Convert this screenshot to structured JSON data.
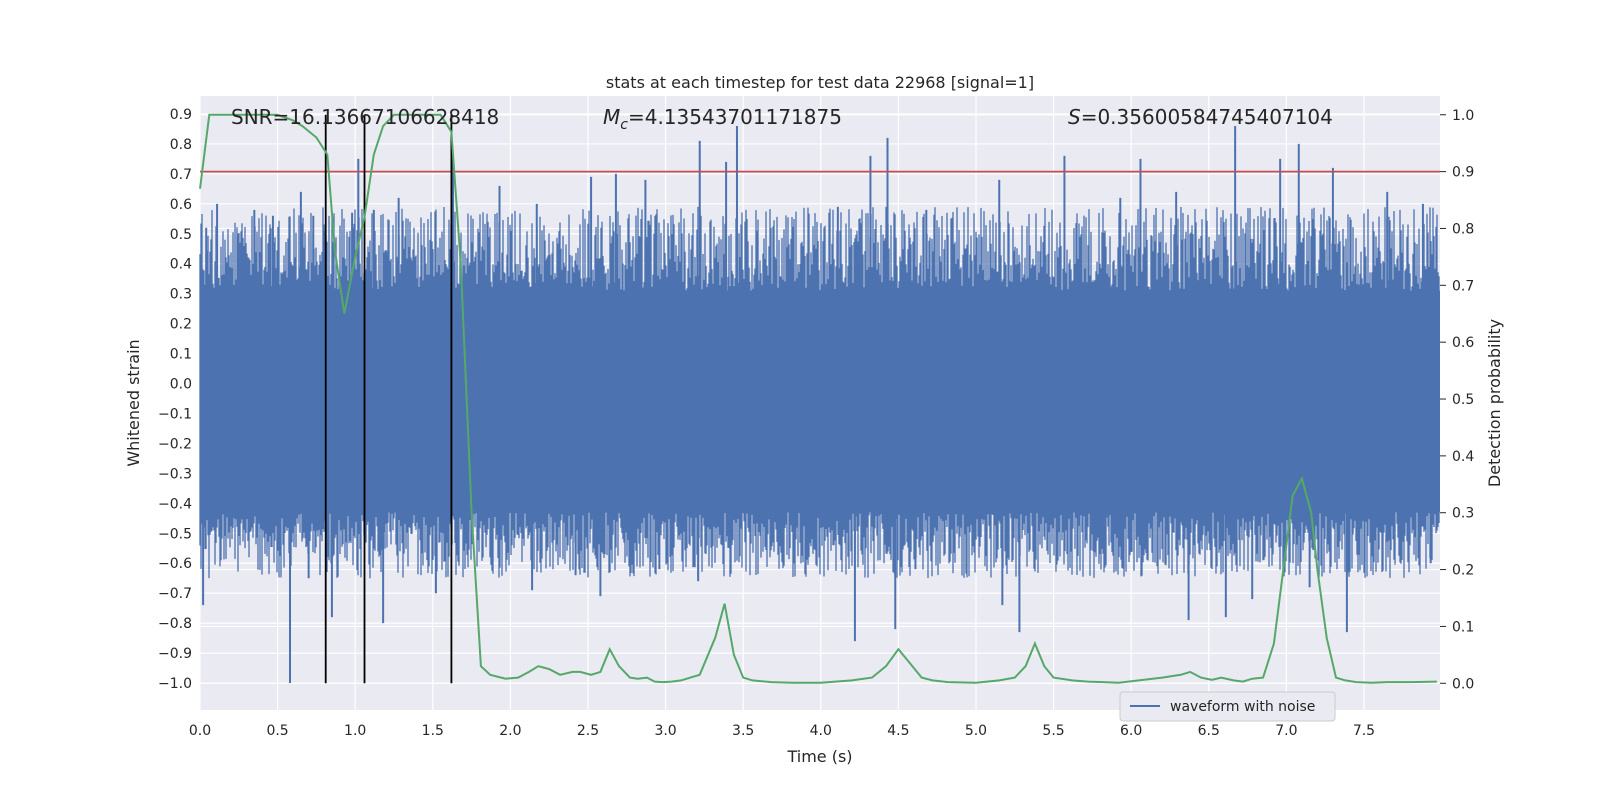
{
  "chart_data": {
    "type": "line",
    "title": "stats at each timestep for test data 22968 [signal=1]",
    "xlabel": "Time (s)",
    "ylabel_left": "Whitened strain",
    "ylabel_right": "Detection probability",
    "xlim": [
      0.0,
      7.99
    ],
    "ylim_left": [
      -1.09,
      0.96
    ],
    "ylim_right": [
      -0.047,
      1.033
    ],
    "x_ticks": [
      0.0,
      0.5,
      1.0,
      1.5,
      2.0,
      2.5,
      3.0,
      3.5,
      4.0,
      4.5,
      5.0,
      5.5,
      6.0,
      6.5,
      7.0,
      7.5
    ],
    "x_tick_labels": [
      "0.0",
      "0.5",
      "1.0",
      "1.5",
      "2.0",
      "2.5",
      "3.0",
      "3.5",
      "4.0",
      "4.5",
      "5.0",
      "5.5",
      "6.0",
      "6.5",
      "7.0",
      "7.5"
    ],
    "y_left_ticks": [
      0.9,
      0.8,
      0.7,
      0.6,
      0.5,
      0.4,
      0.3,
      0.2,
      0.1,
      0.0,
      -0.1,
      -0.2,
      -0.3,
      -0.4,
      -0.5,
      -0.6,
      -0.7,
      -0.8,
      -0.9,
      -1.0
    ],
    "y_left_tick_labels": [
      "0.9",
      "0.8",
      "0.7",
      "0.6",
      "0.5",
      "0.4",
      "0.3",
      "0.2",
      "0.1",
      "0.0",
      "−0.1",
      "−0.2",
      "−0.3",
      "−0.4",
      "−0.5",
      "−0.6",
      "−0.7",
      "−0.8",
      "−0.9",
      "−1.0"
    ],
    "y_right_ticks": [
      1.0,
      0.9,
      0.8,
      0.7,
      0.6,
      0.5,
      0.4,
      0.3,
      0.2,
      0.1,
      0.0
    ],
    "y_right_tick_labels": [
      "1.0",
      "0.9",
      "0.8",
      "0.7",
      "0.6",
      "0.5",
      "0.4",
      "0.3",
      "0.2",
      "0.1",
      "0.0"
    ],
    "annotations": {
      "snr": "SNR=16.13667106628418",
      "mc_symbol": "M",
      "mc_sub": "c",
      "mc_value": "=4.13543701171875",
      "s_symbol": "S",
      "s_value": "=0.35600584745407104"
    },
    "threshold": {
      "value": 0.9,
      "axis": "right",
      "color": "#c44e52"
    },
    "vertical_lines": [
      0.81,
      1.06,
      1.62
    ],
    "waveform": {
      "name": "waveform with noise",
      "color": "#4c72b0",
      "core_upper": 0.31,
      "core_lower": -0.43,
      "noise_seed": 22968,
      "spikes_high": [
        [
          0.04,
          0.52
        ],
        [
          0.11,
          0.6
        ],
        [
          0.35,
          0.58
        ],
        [
          0.47,
          0.56
        ],
        [
          0.65,
          0.64
        ],
        [
          0.73,
          0.56
        ],
        [
          0.98,
          0.57
        ],
        [
          1.02,
          0.75
        ],
        [
          1.12,
          0.58
        ],
        [
          1.28,
          0.62
        ],
        [
          1.63,
          0.76
        ],
        [
          1.93,
          0.66
        ],
        [
          2.17,
          0.6
        ],
        [
          2.52,
          0.69
        ],
        [
          2.68,
          0.7
        ],
        [
          2.87,
          0.68
        ],
        [
          3.22,
          0.81
        ],
        [
          3.39,
          0.74
        ],
        [
          3.46,
          0.86
        ],
        [
          4.11,
          0.59
        ],
        [
          4.32,
          0.76
        ],
        [
          4.43,
          0.82
        ],
        [
          4.68,
          0.58
        ],
        [
          5.15,
          0.68
        ],
        [
          5.57,
          0.76
        ],
        [
          5.93,
          0.62
        ],
        [
          6.06,
          0.75
        ],
        [
          6.29,
          0.64
        ],
        [
          6.67,
          0.86
        ],
        [
          6.96,
          0.75
        ],
        [
          7.08,
          0.8
        ],
        [
          7.3,
          0.72
        ],
        [
          7.65,
          0.64
        ],
        [
          7.88,
          0.6
        ]
      ],
      "spikes_low": [
        [
          0.02,
          -0.74
        ],
        [
          0.58,
          -1.0
        ],
        [
          0.7,
          -0.65
        ],
        [
          0.85,
          -0.78
        ],
        [
          1.18,
          -0.8
        ],
        [
          1.52,
          -0.7
        ],
        [
          2.14,
          -0.69
        ],
        [
          2.42,
          -0.64
        ],
        [
          2.58,
          -0.71
        ],
        [
          2.96,
          -0.62
        ],
        [
          3.21,
          -0.66
        ],
        [
          4.22,
          -0.86
        ],
        [
          4.48,
          -0.82
        ],
        [
          4.61,
          -0.62
        ],
        [
          5.17,
          -0.74
        ],
        [
          5.28,
          -0.83
        ],
        [
          6.37,
          -0.79
        ],
        [
          6.61,
          -0.78
        ],
        [
          6.78,
          -0.72
        ],
        [
          7.15,
          -0.68
        ],
        [
          7.39,
          -0.83
        ],
        [
          7.93,
          -0.6
        ]
      ]
    },
    "probability": {
      "name": "Detection probability",
      "color": "#55a868",
      "x": [
        0.0,
        0.06,
        0.12,
        0.2,
        0.3,
        0.4,
        0.5,
        0.6,
        0.66,
        0.75,
        0.82,
        0.87,
        0.93,
        1.0,
        1.06,
        1.12,
        1.18,
        1.25,
        1.35,
        1.45,
        1.55,
        1.62,
        1.68,
        1.75,
        1.81,
        1.87,
        1.97,
        2.05,
        2.12,
        2.18,
        2.25,
        2.32,
        2.4,
        2.45,
        2.52,
        2.58,
        2.64,
        2.7,
        2.77,
        2.82,
        2.88,
        2.93,
        2.98,
        3.04,
        3.1,
        3.16,
        3.22,
        3.32,
        3.38,
        3.44,
        3.5,
        3.56,
        3.68,
        3.82,
        4.0,
        4.2,
        4.33,
        4.42,
        4.5,
        4.56,
        4.65,
        4.72,
        4.82,
        5.0,
        5.15,
        5.25,
        5.32,
        5.38,
        5.44,
        5.5,
        5.62,
        5.72,
        5.82,
        5.92,
        6.05,
        6.2,
        6.32,
        6.38,
        6.45,
        6.52,
        6.58,
        6.66,
        6.72,
        6.78,
        6.85,
        6.92,
        6.98,
        7.04,
        7.1,
        7.16,
        7.2,
        7.26,
        7.32,
        7.38,
        7.45,
        7.55,
        7.65,
        7.8,
        7.97
      ],
      "y": [
        0.87,
        1.0,
        1.0,
        1.0,
        1.0,
        1.0,
        1.0,
        0.99,
        0.98,
        0.96,
        0.93,
        0.76,
        0.65,
        0.75,
        0.82,
        0.93,
        0.98,
        1.0,
        1.0,
        1.0,
        1.0,
        0.97,
        0.74,
        0.3,
        0.03,
        0.015,
        0.008,
        0.01,
        0.02,
        0.03,
        0.025,
        0.015,
        0.02,
        0.02,
        0.015,
        0.02,
        0.06,
        0.03,
        0.01,
        0.008,
        0.01,
        0.003,
        0.002,
        0.003,
        0.005,
        0.01,
        0.015,
        0.08,
        0.14,
        0.05,
        0.01,
        0.005,
        0.002,
        0.001,
        0.001,
        0.005,
        0.01,
        0.03,
        0.06,
        0.04,
        0.01,
        0.005,
        0.002,
        0.001,
        0.005,
        0.01,
        0.03,
        0.07,
        0.03,
        0.01,
        0.005,
        0.003,
        0.002,
        0.001,
        0.005,
        0.01,
        0.015,
        0.02,
        0.01,
        0.006,
        0.01,
        0.005,
        0.003,
        0.008,
        0.01,
        0.07,
        0.2,
        0.33,
        0.36,
        0.3,
        0.2,
        0.08,
        0.01,
        0.005,
        0.002,
        0.001,
        0.002,
        0.002,
        0.003
      ]
    },
    "legend": {
      "label": "waveform with noise",
      "placement": "lower-right"
    },
    "grid": true
  }
}
